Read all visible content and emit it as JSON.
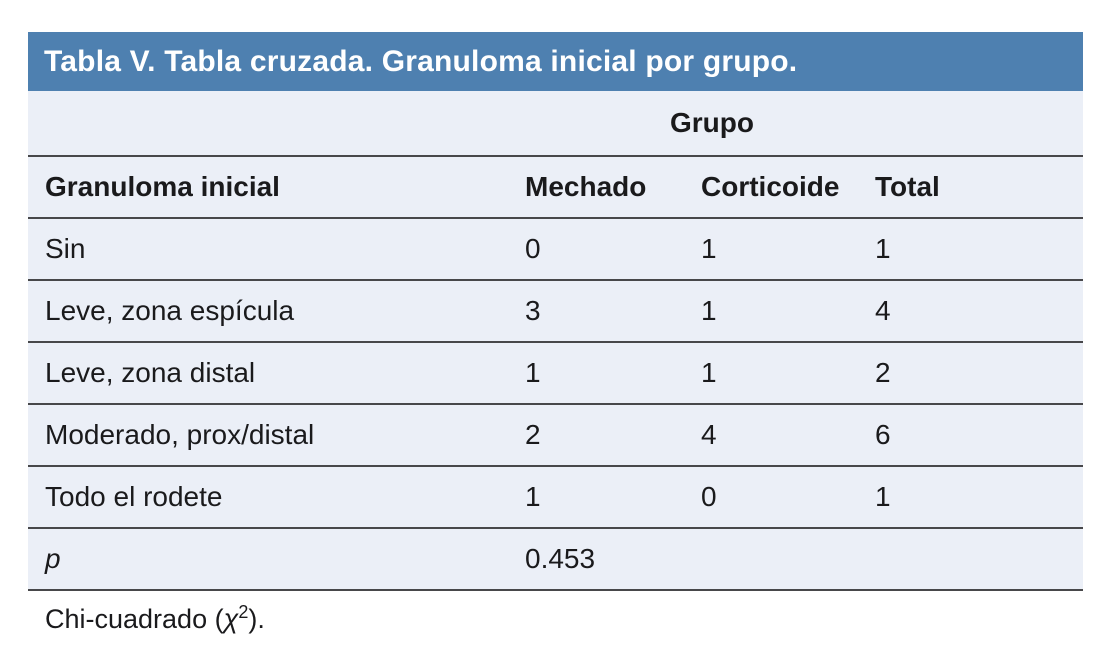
{
  "colors": {
    "accent_blue": "#4E80B0",
    "table_body_bg": "#EBEFF7",
    "rule_line": "#47474a",
    "title_text": "#ffffff",
    "body_text": "#1a1a1c"
  },
  "title": "Tabla V. Tabla cruzada. Granuloma inicial por grupo.",
  "table": {
    "group_header": "Grupo",
    "columns": [
      "Granuloma inicial",
      "Mechado",
      "Corticoide",
      "Total"
    ],
    "rows": [
      {
        "label": "Sin",
        "mechado": "0",
        "corticoide": "1",
        "total": "1"
      },
      {
        "label": "Leve, zona espícula",
        "mechado": "3",
        "corticoide": "1",
        "total": "4"
      },
      {
        "label": "Leve, zona distal",
        "mechado": "1",
        "corticoide": "1",
        "total": "2"
      },
      {
        "label": "Moderado, prox/distal",
        "mechado": "2",
        "corticoide": "4",
        "total": "6"
      },
      {
        "label": "Todo el rodete",
        "mechado": "1",
        "corticoide": "0",
        "total": "1"
      }
    ],
    "p_row": {
      "label": "p",
      "value": "0.453",
      "corticoide": "",
      "total": ""
    }
  },
  "footnote": {
    "prefix": "Chi-cuadrado (",
    "chi": "χ",
    "sup": "2",
    "suffix": ")."
  }
}
